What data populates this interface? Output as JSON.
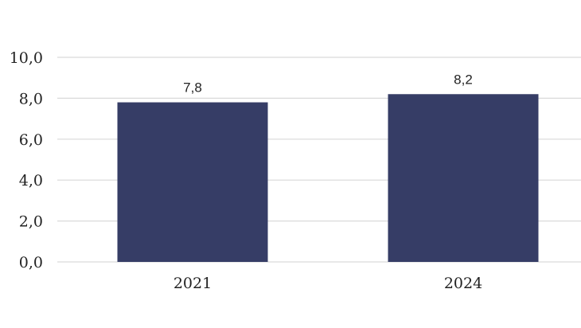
{
  "chart_data": {
    "type": "bar",
    "categories": [
      "2021",
      "2024"
    ],
    "values": [
      7.8,
      8.2
    ],
    "value_labels": [
      "7,8",
      "8,2"
    ],
    "y_ticks": [
      0,
      2,
      4,
      6,
      8,
      10
    ],
    "y_tick_labels": [
      "0,0",
      "2,0",
      "4,0",
      "6,0",
      "8,0",
      "10,0"
    ],
    "ylim": [
      0,
      10
    ],
    "title": "",
    "xlabel": "",
    "ylabel": "",
    "grid": true,
    "legend": "none",
    "colors": {
      "bar": "#363d66",
      "grid": "#d9d9d9",
      "text": "#222222"
    }
  }
}
